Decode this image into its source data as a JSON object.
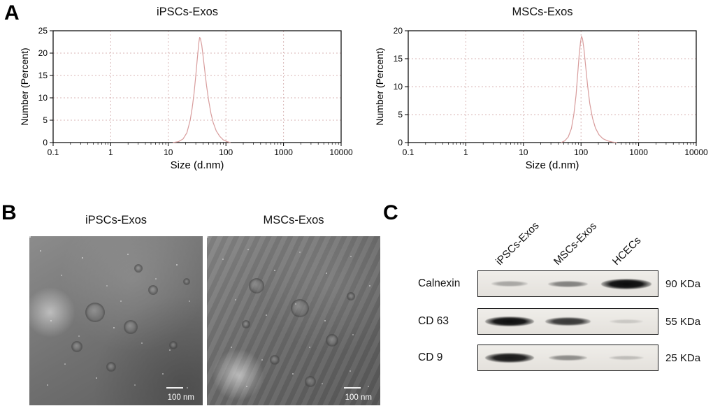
{
  "figure": {
    "panel_a_label": "A",
    "panel_b_label": "B",
    "panel_c_label": "C"
  },
  "chart_data": [
    {
      "type": "line",
      "title": "iPSCs-Exos",
      "xlabel": "Size (d.nm)",
      "ylabel": "Number (Percent)",
      "x_scale": "log",
      "xlim": [
        0.1,
        10000
      ],
      "ylim": [
        0,
        25
      ],
      "x_ticks": [
        "0.1",
        "1",
        "10",
        "100",
        "1000",
        "10000"
      ],
      "y_ticks": [
        0,
        5,
        10,
        15,
        20,
        25
      ],
      "grid": true,
      "grid_color": "#d8b6b6",
      "line_color": "#d89c9c",
      "peak_size_nm": 35,
      "peak_percent": 23.5,
      "points": [
        [
          12,
          0
        ],
        [
          15,
          0.2
        ],
        [
          18,
          0.8
        ],
        [
          21,
          2.2
        ],
        [
          24,
          5
        ],
        [
          26,
          7.8
        ],
        [
          28,
          11
        ],
        [
          30,
          15
        ],
        [
          32,
          19
        ],
        [
          34,
          22.5
        ],
        [
          35,
          23.5
        ],
        [
          36,
          23.3
        ],
        [
          38,
          21.8
        ],
        [
          40,
          19.5
        ],
        [
          43,
          16
        ],
        [
          46,
          12.8
        ],
        [
          50,
          9.5
        ],
        [
          55,
          6.5
        ],
        [
          60,
          4.5
        ],
        [
          68,
          2.6
        ],
        [
          78,
          1.4
        ],
        [
          90,
          0.6
        ],
        [
          105,
          0.2
        ],
        [
          120,
          0
        ]
      ]
    },
    {
      "type": "line",
      "title": "MSCs-Exos",
      "xlabel": "Size (d.nm)",
      "ylabel": "Number (Percent)",
      "x_scale": "log",
      "xlim": [
        0.1,
        10000
      ],
      "ylim": [
        0,
        20
      ],
      "x_ticks": [
        "0.1",
        "1",
        "10",
        "100",
        "1000",
        "10000"
      ],
      "y_ticks": [
        0,
        5,
        10,
        15,
        20
      ],
      "grid": true,
      "grid_color": "#d8b6b6",
      "line_color": "#d89c9c",
      "peak_size_nm": 102,
      "peak_percent": 19,
      "points": [
        [
          45,
          0
        ],
        [
          52,
          0.3
        ],
        [
          60,
          1
        ],
        [
          68,
          2.5
        ],
        [
          75,
          5
        ],
        [
          82,
          8.5
        ],
        [
          88,
          12.5
        ],
        [
          93,
          15.8
        ],
        [
          98,
          18
        ],
        [
          102,
          19
        ],
        [
          106,
          18.6
        ],
        [
          112,
          16.8
        ],
        [
          120,
          13.8
        ],
        [
          130,
          10.2
        ],
        [
          142,
          7
        ],
        [
          158,
          4.4
        ],
        [
          178,
          2.6
        ],
        [
          205,
          1.4
        ],
        [
          240,
          0.7
        ],
        [
          290,
          0.3
        ],
        [
          350,
          0.1
        ],
        [
          420,
          0
        ]
      ]
    }
  ],
  "panel_b": {
    "images": [
      {
        "title": "iPSCs-Exos",
        "scale_label": "100 nm"
      },
      {
        "title": "MSCs-Exos",
        "scale_label": "100 nm"
      }
    ]
  },
  "panel_c": {
    "lanes": [
      "iPSCs-Exos",
      "MSCs-Exos",
      "HCECs"
    ],
    "rows": [
      {
        "protein": "Calnexin",
        "weight": "90 KDa",
        "band_intensities": [
          0.22,
          0.4,
          1.0
        ]
      },
      {
        "protein": "CD 63",
        "weight": "55 KDa",
        "band_intensities": [
          0.95,
          0.75,
          0.06
        ]
      },
      {
        "protein": "CD 9",
        "weight": "25 KDa",
        "band_intensities": [
          0.9,
          0.35,
          0.12
        ]
      }
    ]
  }
}
